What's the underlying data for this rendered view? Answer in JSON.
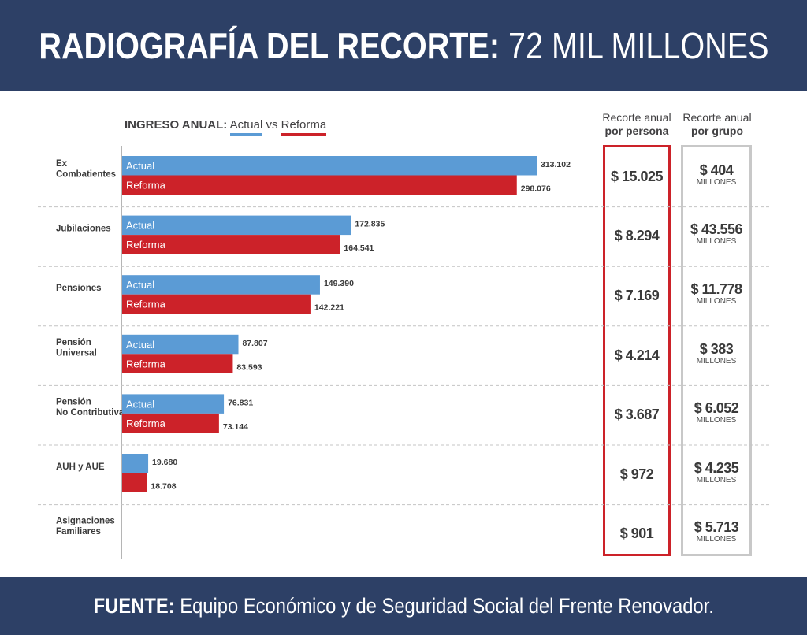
{
  "header": {
    "title_bold": "RADIOGRAFÍA DEL RECORTE:",
    "title_light": "72 MIL MILLONES"
  },
  "legend": {
    "prefix": "INGRESO ANUAL:",
    "actual": "Actual",
    "vs": "vs",
    "reforma": "Reforma"
  },
  "columns": {
    "persona": {
      "line1": "Recorte anual",
      "line2": "por persona"
    },
    "grupo": {
      "line1": "Recorte anual",
      "line2": "por grupo"
    }
  },
  "footer": {
    "bold": "FUENTE:",
    "text": "Equipo Económico y de Seguridad Social del Frente Renovador."
  },
  "colors": {
    "actual": "#5b9bd5",
    "reforma": "#cc2229",
    "header": "#2d4066",
    "grupo_box": "#c8c8c8"
  },
  "chart_data": {
    "type": "bar",
    "orientation": "horizontal",
    "categories": [
      [
        "Ex",
        "Combatientes"
      ],
      [
        "Jubilaciones"
      ],
      [
        "Pensiones"
      ],
      [
        "Pensión",
        "Universal"
      ],
      [
        "Pensión",
        "No Contributiva"
      ],
      [
        "AUH y AUE"
      ],
      [
        "Asignaciones",
        "Familiares"
      ]
    ],
    "series": [
      {
        "name": "Actual",
        "values": [
          313102,
          172835,
          149390,
          87807,
          76831,
          19680,
          null
        ],
        "labels": [
          "313.102",
          "172.835",
          "149.390",
          "87.807",
          "76.831",
          "19.680",
          ""
        ],
        "show_inside_label": [
          true,
          true,
          true,
          true,
          true,
          false,
          false
        ]
      },
      {
        "name": "Reforma",
        "values": [
          298076,
          164541,
          142221,
          83593,
          73144,
          18708,
          null
        ],
        "labels": [
          "298.076",
          "164.541",
          "142.221",
          "83.593",
          "73.144",
          "18.708",
          ""
        ],
        "show_inside_label": [
          true,
          true,
          true,
          true,
          true,
          false,
          false
        ]
      }
    ],
    "recorte_por_persona": [
      "$ 15.025",
      "$ 8.294",
      "$ 7.169",
      "$ 4.214",
      "$ 3.687",
      "$ 972",
      "$ 901"
    ],
    "recorte_por_grupo": [
      "$ 404",
      "$ 43.556",
      "$ 11.778",
      "$ 383",
      "$ 6.052",
      "$ 4.235",
      "$ 5.713"
    ],
    "grupo_unit": "MILLONES",
    "xlim": [
      0,
      313102
    ]
  }
}
